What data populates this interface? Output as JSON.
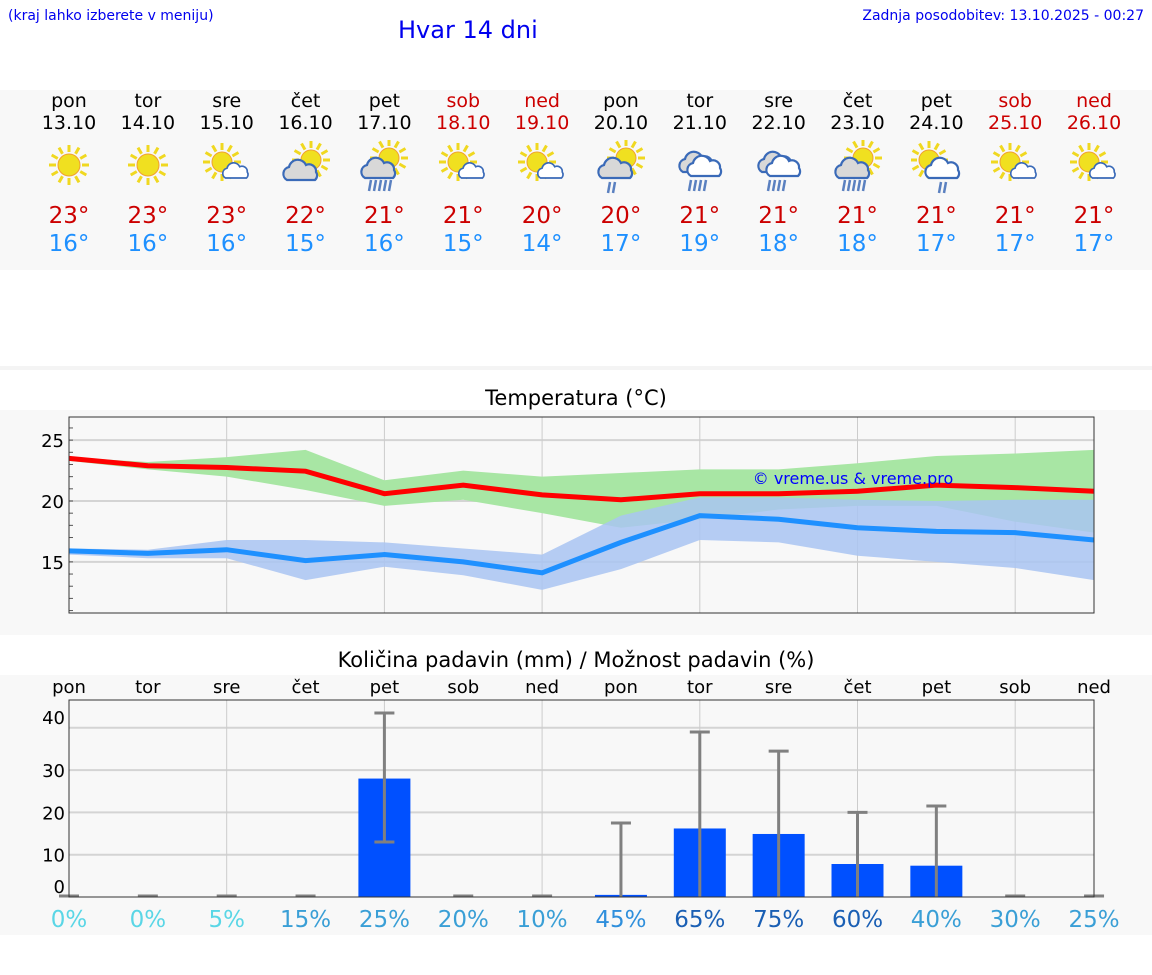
{
  "header": {
    "hint": "(kraj lahko izberete v meniju)",
    "title": "Hvar 14 dni",
    "updated": "Zadnja posodobitev: 13.10.2025 - 00:27"
  },
  "days": [
    {
      "name": "pon",
      "date": "13.10",
      "weekend": false,
      "icon": "sun",
      "max": "23°",
      "min": "16°"
    },
    {
      "name": "tor",
      "date": "14.10",
      "weekend": false,
      "icon": "sun",
      "max": "23°",
      "min": "16°"
    },
    {
      "name": "sre",
      "date": "15.10",
      "weekend": false,
      "icon": "sun-small-cloud",
      "max": "23°",
      "min": "16°"
    },
    {
      "name": "čet",
      "date": "16.10",
      "weekend": false,
      "icon": "cloud-sun",
      "max": "22°",
      "min": "15°"
    },
    {
      "name": "pet",
      "date": "17.10",
      "weekend": false,
      "icon": "cloud-sun-rain",
      "max": "21°",
      "min": "16°"
    },
    {
      "name": "sob",
      "date": "18.10",
      "weekend": true,
      "icon": "sun-small-cloud",
      "max": "21°",
      "min": "15°"
    },
    {
      "name": "ned",
      "date": "19.10",
      "weekend": true,
      "icon": "sun-small-cloud",
      "max": "20°",
      "min": "14°"
    },
    {
      "name": "pon",
      "date": "20.10",
      "weekend": false,
      "icon": "cloud-sun-light-rain",
      "max": "20°",
      "min": "17°"
    },
    {
      "name": "tor",
      "date": "21.10",
      "weekend": false,
      "icon": "cloudy-rain",
      "max": "21°",
      "min": "19°"
    },
    {
      "name": "sre",
      "date": "22.10",
      "weekend": false,
      "icon": "cloudy-rain",
      "max": "21°",
      "min": "18°"
    },
    {
      "name": "čet",
      "date": "23.10",
      "weekend": false,
      "icon": "cloud-sun-rain",
      "max": "21°",
      "min": "18°"
    },
    {
      "name": "pet",
      "date": "24.10",
      "weekend": false,
      "icon": "sun-cloud-light-rain",
      "max": "21°",
      "min": "17°"
    },
    {
      "name": "sob",
      "date": "25.10",
      "weekend": true,
      "icon": "sun-small-cloud",
      "max": "21°",
      "min": "17°"
    },
    {
      "name": "ned",
      "date": "26.10",
      "weekend": true,
      "icon": "sun-small-cloud",
      "max": "21°",
      "min": "17°"
    }
  ],
  "colors": {
    "weekday": "#000000",
    "weekend": "#cc0000",
    "max": "#ff0000",
    "min": "#1e90ff",
    "max_band": "#a8e6a4",
    "min_band": "#a9c4f2",
    "bar": "#0050ff",
    "whisker": "#808080"
  },
  "chart_data": [
    {
      "type": "line",
      "title": "Temperatura (°C)",
      "ylim": [
        10.8,
        26.9
      ],
      "yticks": [
        15,
        20,
        25
      ],
      "grid": true,
      "watermark": "© vreme.us & vreme.pro",
      "x": [
        "13.10",
        "14.10",
        "15.10",
        "16.10",
        "17.10",
        "18.10",
        "19.10",
        "20.10",
        "21.10",
        "22.10",
        "23.10",
        "24.10",
        "25.10",
        "26.10"
      ],
      "series": [
        {
          "name": "max",
          "values": [
            23.5,
            22.9,
            22.75,
            22.45,
            20.6,
            21.3,
            20.5,
            20.1,
            20.6,
            20.6,
            20.8,
            21.3,
            21.1,
            20.8
          ],
          "band_upper": [
            23.6,
            23.2,
            23.6,
            24.2,
            21.7,
            22.5,
            22.0,
            22.3,
            22.6,
            22.6,
            23.1,
            23.7,
            23.9,
            24.2
          ],
          "band_lower": [
            23.3,
            22.6,
            22.0,
            20.9,
            19.6,
            20.1,
            19.0,
            17.8,
            18.5,
            19.3,
            19.6,
            19.6,
            18.3,
            17.4
          ]
        },
        {
          "name": "min",
          "values": [
            15.9,
            15.7,
            16.0,
            15.1,
            15.6,
            15.0,
            14.1,
            16.6,
            18.8,
            18.5,
            17.8,
            17.5,
            17.4,
            16.8
          ],
          "band_upper": [
            16.1,
            16.0,
            16.8,
            16.8,
            16.6,
            16.1,
            15.6,
            18.8,
            20.3,
            20.3,
            20.1,
            20.0,
            20.1,
            20.1
          ],
          "band_lower": [
            15.6,
            15.3,
            15.3,
            13.5,
            14.6,
            13.9,
            12.7,
            14.4,
            16.8,
            16.6,
            15.5,
            15.0,
            14.5,
            13.5
          ]
        }
      ]
    },
    {
      "type": "bar",
      "title": "Količina padavin (mm) / Možnost padavin (%)",
      "ylim": [
        0,
        47
      ],
      "yticks": [
        0,
        10,
        20,
        30,
        40
      ],
      "grid": true,
      "categories": [
        "pon",
        "tor",
        "sre",
        "čet",
        "pet",
        "sob",
        "ned",
        "pon",
        "tor",
        "sre",
        "čet",
        "pet",
        "sob",
        "ned"
      ],
      "values": [
        0,
        0,
        0,
        0,
        28,
        0,
        0,
        0.5,
        16.2,
        14.9,
        7.8,
        7.4,
        0,
        0
      ],
      "err_low": [
        0,
        0,
        0,
        0,
        13,
        0,
        0,
        0,
        0,
        0,
        0,
        0,
        0,
        0
      ],
      "err_high": [
        0,
        0,
        0,
        0,
        43.5,
        0,
        0,
        17.5,
        39,
        34.5,
        20,
        21.5,
        0,
        0
      ],
      "probability": [
        "0%",
        "0%",
        "5%",
        "15%",
        "25%",
        "20%",
        "10%",
        "45%",
        "65%",
        "75%",
        "60%",
        "40%",
        "30%",
        "25%"
      ],
      "probability_colors": [
        "#5ad6e6",
        "#5ad6e6",
        "#5ad6e6",
        "#3a9fd6",
        "#3a9fd6",
        "#3a9fd6",
        "#3a9fd6",
        "#2f8fdc",
        "#1a5fb4",
        "#1a5fb4",
        "#1a5fb4",
        "#3a9fd6",
        "#3a9fd6",
        "#3a9fd6"
      ]
    }
  ]
}
